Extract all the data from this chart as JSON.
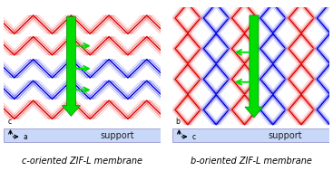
{
  "title_left": "c-oriented ZIF-L membrane",
  "title_right": "b-oriented ZIF-L membrane",
  "support_color": "#c8d8f8",
  "support_label": "support",
  "support_edge": "#9999cc",
  "bg_color": "#ffffff",
  "arrow_green": "#00dd00",
  "red_dark": "#dd0000",
  "red_mid": "#ee6666",
  "red_light": "#ffaaaa",
  "blue_dark": "#0000dd",
  "blue_mid": "#6666ee",
  "blue_light": "#aaaaff",
  "font_size_title": 7,
  "font_size_support": 7,
  "font_size_axis": 5.5
}
